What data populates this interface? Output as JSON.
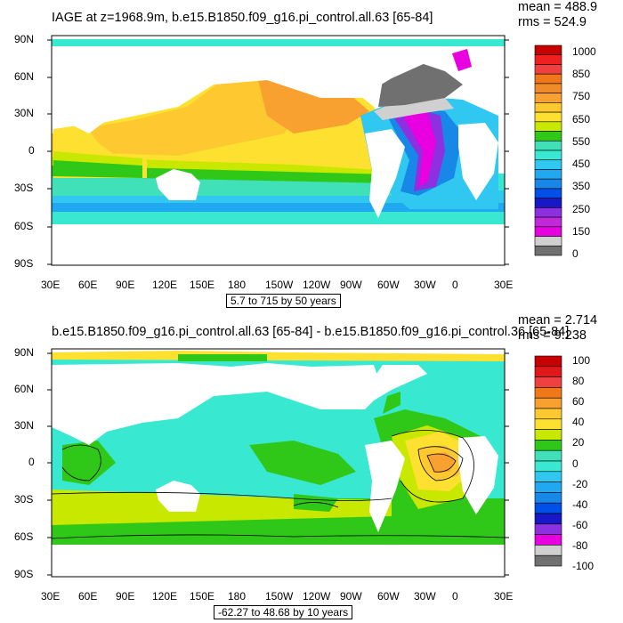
{
  "top_panel": {
    "title": "IAGE at z=1968.9m, b.e15.B1850.f09_g16.pi_control.all.63 [65-84]",
    "mean": "mean = 488.9",
    "rms": "rms = 524.9",
    "range_label": "5.7 to 715 by 50 years",
    "colorbar_labels": [
      "1000",
      "850",
      "750",
      "650",
      "550",
      "450",
      "350",
      "250",
      "150",
      "0"
    ],
    "colorbar_colors": [
      "#c80000",
      "#f02020",
      "#f04040",
      "#f07818",
      "#f08c28",
      "#f8a030",
      "#fdc830",
      "#fde030",
      "#c8e800",
      "#30c818",
      "#40e0b8",
      "#38e8d0",
      "#30c8f0",
      "#20a8f0",
      "#1888e8",
      "#0050e8",
      "#1818c8",
      "#8c30e0",
      "#c028d8",
      "#e800e0",
      "#d0d0d0",
      "#707070"
    ]
  },
  "bottom_panel": {
    "title": "b.e15.B1850.f09_g16.pi_control.all.63 [65-84] - b.e15.B1850.f09_g16.pi_control.36 [65-84]",
    "mean": "mean = 2.714",
    "rms": "rms = 9.238",
    "range_label": "-62.27 to 48.68 by 10 years",
    "colorbar_labels": [
      "100",
      "80",
      "60",
      "40",
      "20",
      "0",
      "-20",
      "-40",
      "-60",
      "-80",
      "-100"
    ],
    "colorbar_colors": [
      "#c80000",
      "#e01818",
      "#f04040",
      "#f07818",
      "#f8a030",
      "#fdc830",
      "#fde030",
      "#c8e800",
      "#30c818",
      "#40e0b8",
      "#38e8d0",
      "#30c8f0",
      "#20a8f0",
      "#1888e8",
      "#0050e8",
      "#1818c8",
      "#8c30e0",
      "#e800e0",
      "#d0d0d0",
      "#707070"
    ]
  },
  "axes": {
    "lat_labels": [
      "90N",
      "60N",
      "30N",
      "0",
      "30S",
      "60S",
      "90S"
    ],
    "lon_labels": [
      "30E",
      "60E",
      "90E",
      "120E",
      "150E",
      "180",
      "150W",
      "120W",
      "90W",
      "60W",
      "30W",
      "0",
      "30E"
    ]
  },
  "chart_data": [
    {
      "type": "heatmap",
      "title": "IAGE at z=1968.9m, b.e15.B1850.f09_g16.pi_control.all.63 [65-84]",
      "variable": "IAGE",
      "units": "years",
      "depth": "z=1968.9m",
      "xlabel": "",
      "ylabel": "",
      "x_ticks": [
        "30E",
        "60E",
        "90E",
        "120E",
        "150E",
        "180",
        "150W",
        "120W",
        "90W",
        "60W",
        "30W",
        "0",
        "30E"
      ],
      "y_ticks": [
        "90N",
        "60N",
        "30N",
        "0",
        "30S",
        "60S",
        "90S"
      ],
      "colorbar_levels": [
        0,
        150,
        250,
        350,
        450,
        550,
        650,
        750,
        850,
        1000
      ],
      "stats": {
        "mean": 488.9,
        "rms": 524.9
      },
      "contour_range": {
        "min": 5.7,
        "max": 715,
        "interval": 50
      }
    },
    {
      "type": "heatmap",
      "title": "b.e15.B1850.f09_g16.pi_control.all.63 [65-84] - b.e15.B1850.f09_g16.pi_control.36 [65-84]",
      "variable": "IAGE difference",
      "units": "years",
      "xlabel": "",
      "ylabel": "",
      "x_ticks": [
        "30E",
        "60E",
        "90E",
        "120E",
        "150E",
        "180",
        "150W",
        "120W",
        "90W",
        "60W",
        "30W",
        "0",
        "30E"
      ],
      "y_ticks": [
        "90N",
        "60N",
        "30N",
        "0",
        "30S",
        "60S",
        "90S"
      ],
      "colorbar_levels": [
        -100,
        -80,
        -60,
        -40,
        -20,
        0,
        20,
        40,
        60,
        80,
        100
      ],
      "stats": {
        "mean": 2.714,
        "rms": 9.238
      },
      "contour_range": {
        "min": -62.27,
        "max": 48.68,
        "interval": 10
      }
    }
  ]
}
